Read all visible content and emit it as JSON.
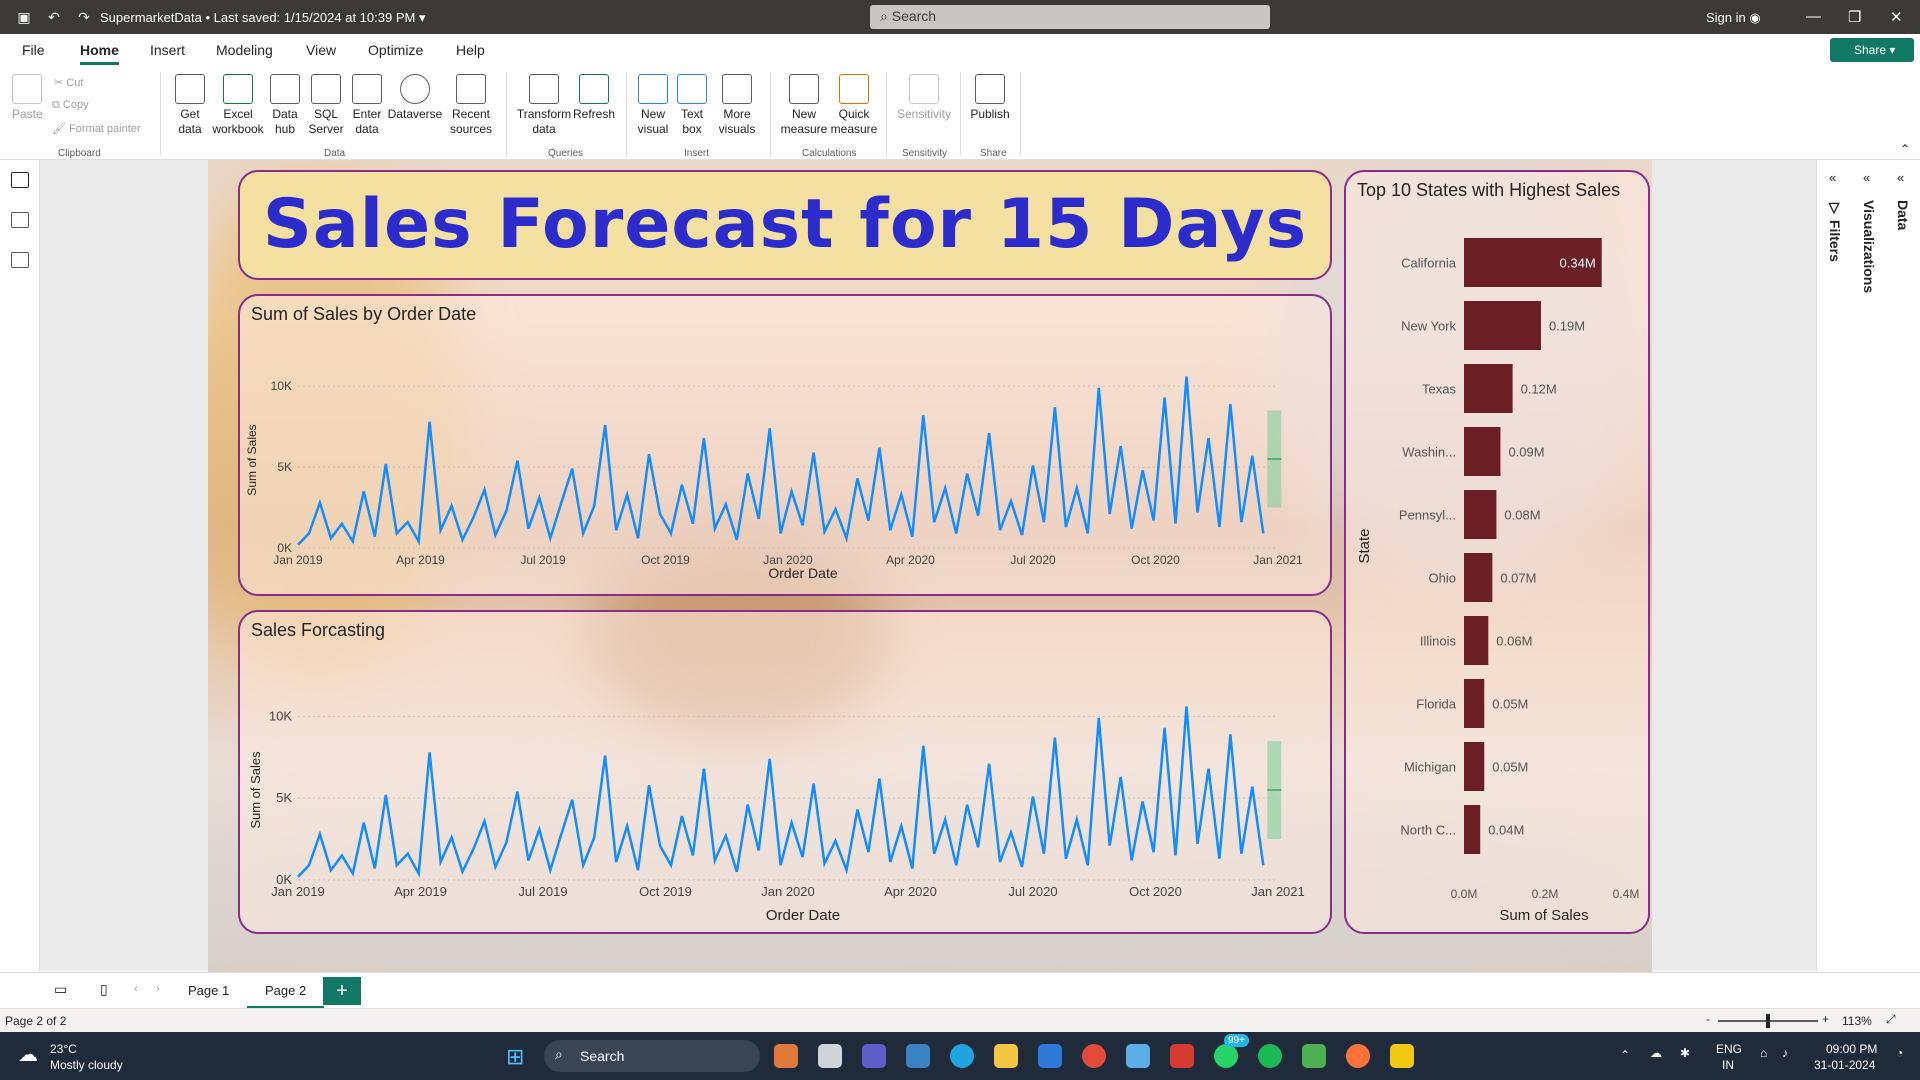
{
  "titlebar": {
    "doc_name": "SupermarketData",
    "save_status": "• Last saved: 1/15/2024 at 10:39 PM",
    "search_placeholder": "Search",
    "sign_in": "Sign in"
  },
  "menu": {
    "tabs": [
      "File",
      "Home",
      "Insert",
      "Modeling",
      "View",
      "Optimize",
      "Help"
    ],
    "active_tab": "Home",
    "share": "Share"
  },
  "ribbon": {
    "clipboard": {
      "paste": "Paste",
      "cut": "Cut",
      "copy": "Copy",
      "format_painter": "Format painter",
      "group": "Clipboard"
    },
    "data": {
      "get_data": "Get data",
      "excel": "Excel workbook",
      "data_hub": "Data hub",
      "sql": "SQL Server",
      "enter": "Enter data",
      "dataverse": "Dataverse",
      "recent": "Recent sources",
      "group": "Data"
    },
    "queries": {
      "transform": "Transform data",
      "refresh": "Refresh",
      "group": "Queries"
    },
    "insert": {
      "new_visual": "New visual",
      "text_box": "Text box",
      "more_visuals": "More visuals",
      "group": "Insert"
    },
    "calculations": {
      "new_measure": "New measure",
      "quick_measure": "Quick measure",
      "group": "Calculations"
    },
    "sensitivity": {
      "label": "Sensitivity",
      "group": "Sensitivity"
    },
    "share": {
      "publish": "Publish",
      "group": "Share"
    }
  },
  "report": {
    "title": "Sales Forecast for 15 Days",
    "chart1_title": "Sum of Sales by Order Date",
    "chart2_title": "Sales Forcasting",
    "chart3_title": "Top 10 States with Highest Sales"
  },
  "chart_data": [
    {
      "type": "line",
      "title": "Sum of Sales by Order Date",
      "xlabel": "Order Date",
      "ylabel": "Sum of Sales",
      "x_ticks": [
        "Jan 2019",
        "Apr 2019",
        "Jul 2019",
        "Oct 2019",
        "Jan 2020",
        "Apr 2020",
        "Jul 2020",
        "Oct 2020",
        "Jan 2021"
      ],
      "y_ticks": [
        "0K",
        "5K",
        "10K"
      ],
      "ylim": [
        0,
        11000
      ],
      "series": [
        {
          "values": [
            200,
            900,
            2800,
            600,
            1500,
            400,
            3500,
            700,
            5200,
            900,
            1600,
            400,
            7800,
            1100,
            2600,
            500,
            1900,
            3600,
            800,
            2300,
            5400,
            1200,
            3100,
            600,
            2800,
            4900,
            900,
            2600,
            7600,
            1100,
            3300,
            600,
            5800,
            2100,
            900,
            3900,
            1500,
            6800,
            1200,
            2700,
            500,
            4600,
            1800,
            7400,
            900,
            3500,
            1400,
            5900,
            1000,
            2400,
            600,
            4300,
            1700,
            6200,
            1100,
            3300,
            700,
            8200,
            1600,
            3700,
            900,
            4600,
            2000,
            7100,
            1100,
            2900,
            800,
            5100,
            1600,
            8700,
            1300,
            3700,
            900,
            9900,
            2100,
            6300,
            1200,
            4800,
            1700,
            9300,
            1500,
            10600,
            2200,
            6800,
            1300,
            8900,
            1600,
            5700,
            900
          ]
        }
      ],
      "forecast_band_color": "#7ed09a"
    },
    {
      "type": "line",
      "title": "Sales Forcasting",
      "xlabel": "Order Date",
      "ylabel": "Sum of Sales",
      "x_ticks": [
        "Jan 2019",
        "Apr 2019",
        "Jul 2019",
        "Oct 2019",
        "Jan 2020",
        "Apr 2020",
        "Jul 2020",
        "Oct 2020",
        "Jan 2021"
      ],
      "y_ticks": [
        "0K",
        "5K",
        "10K"
      ],
      "ylim": [
        0,
        11000
      ],
      "series": [
        {
          "values": [
            200,
            900,
            2800,
            600,
            1500,
            400,
            3500,
            700,
            5200,
            900,
            1600,
            400,
            7800,
            1100,
            2600,
            500,
            1900,
            3600,
            800,
            2300,
            5400,
            1200,
            3100,
            600,
            2800,
            4900,
            900,
            2600,
            7600,
            1100,
            3300,
            600,
            5800,
            2100,
            900,
            3900,
            1500,
            6800,
            1200,
            2700,
            500,
            4600,
            1800,
            7400,
            900,
            3500,
            1400,
            5900,
            1000,
            2400,
            600,
            4300,
            1700,
            6200,
            1100,
            3300,
            700,
            8200,
            1600,
            3700,
            900,
            4600,
            2000,
            7100,
            1100,
            2900,
            800,
            5100,
            1600,
            8700,
            1300,
            3700,
            900,
            9900,
            2100,
            6300,
            1200,
            4800,
            1700,
            9300,
            1500,
            10600,
            2200,
            6800,
            1300,
            8900,
            1600,
            5700,
            900
          ]
        }
      ],
      "forecast_band_color": "#7ed09a"
    },
    {
      "type": "bar",
      "orientation": "horizontal",
      "title": "Top 10 States with Highest Sales",
      "xlabel": "Sum of Sales",
      "ylabel": "State",
      "categories": [
        "California",
        "New York",
        "Texas",
        "Washin...",
        "Pennsyl...",
        "Ohio",
        "Illinois",
        "Florida",
        "Michigan",
        "North C..."
      ],
      "values": [
        0.34,
        0.19,
        0.12,
        0.09,
        0.08,
        0.07,
        0.06,
        0.05,
        0.05,
        0.04
      ],
      "value_labels": [
        "0.34M",
        "0.19M",
        "0.12M",
        "0.09M",
        "0.08M",
        "0.07M",
        "0.06M",
        "0.05M",
        "0.05M",
        "0.04M"
      ],
      "x_ticks": [
        "0.0M",
        "0.2M",
        "0.4M"
      ],
      "xlim": [
        0,
        0.4
      ],
      "bar_color": "#6b1f24"
    }
  ],
  "right_panes": {
    "filters": "Filters",
    "visualizations": "Visualizations",
    "data": "Data"
  },
  "pages": {
    "tabs": [
      "Page 1",
      "Page 2"
    ],
    "active": "Page 2",
    "add": "+"
  },
  "status": {
    "page_info": "Page 2 of 2",
    "zoom": "113%"
  },
  "taskbar": {
    "weather_temp": "23°C",
    "weather_desc": "Mostly cloudy",
    "search": "Search",
    "lang1": "ENG",
    "lang2": "IN",
    "time": "09:00 PM",
    "date": "31-01-2024",
    "badge": "99+"
  }
}
